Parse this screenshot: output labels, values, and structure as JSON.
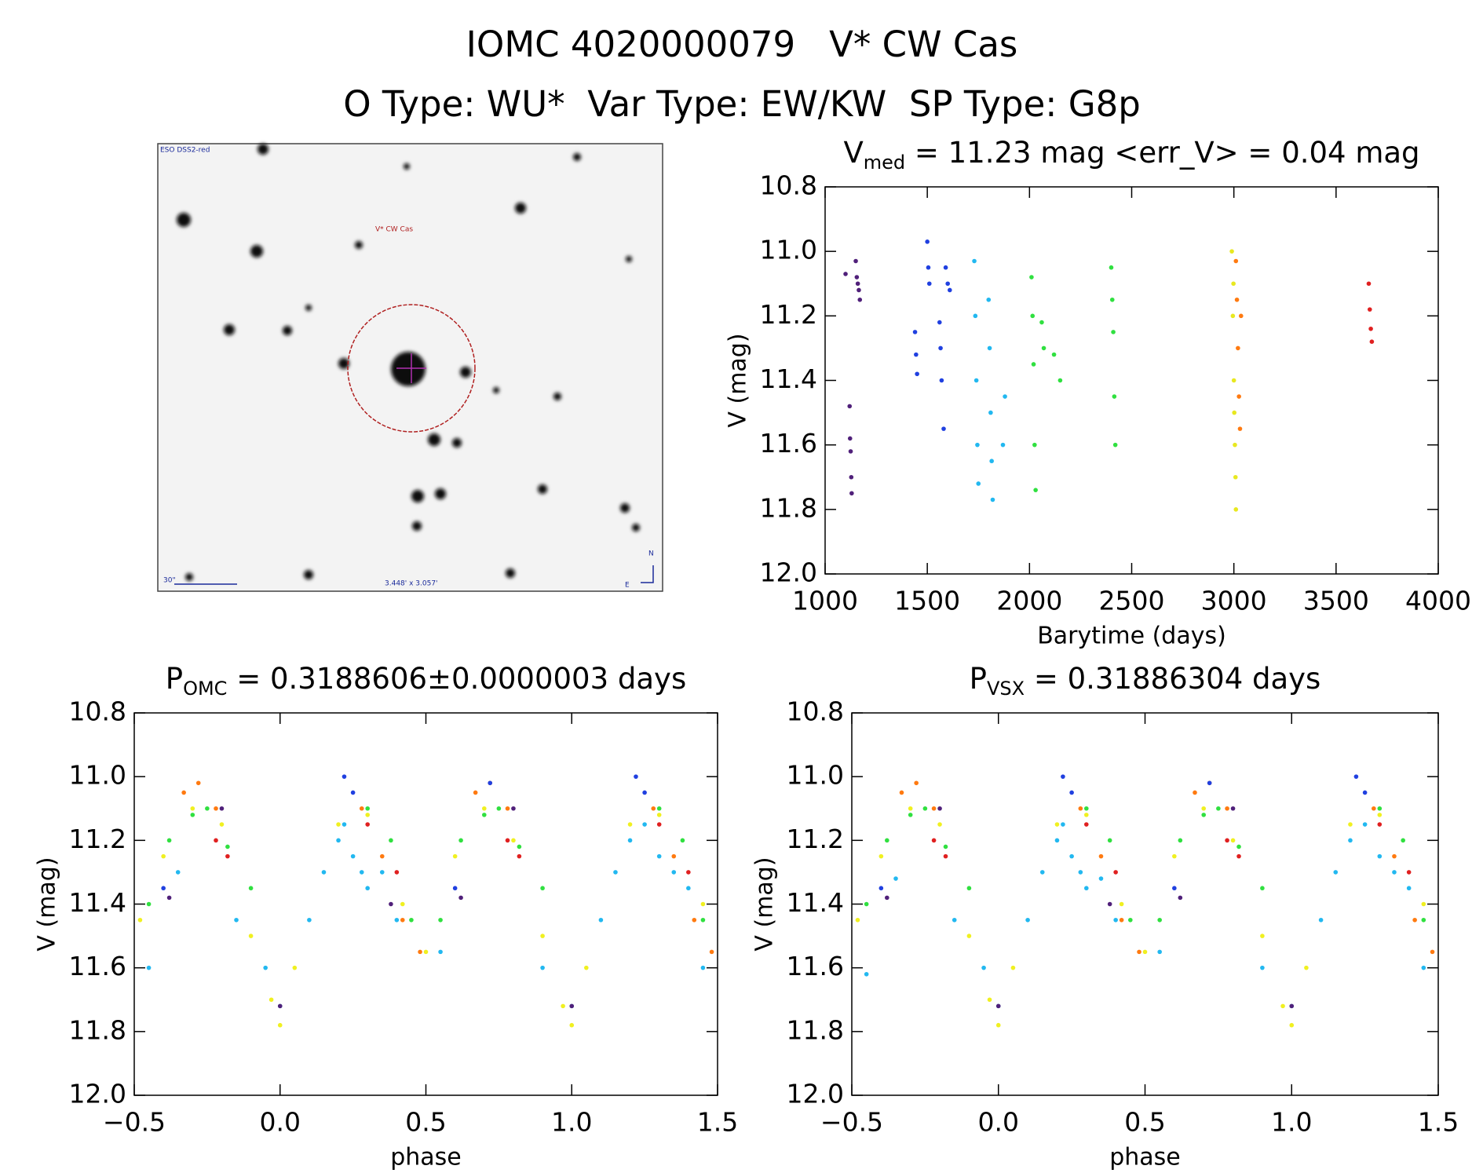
{
  "header": {
    "title": "IOMC 4020000079   V* CW Cas",
    "subtitle": "O Type: WU*  Var Type: EW/KW  SP Type: G8p"
  },
  "finder_image": {
    "survey": "ESO DSS2-red",
    "target": "V* CW Cas",
    "scale_bar": "30\"",
    "field": "3.448' x 3.057'",
    "north": "N",
    "east": "E"
  },
  "chart_data": [
    {
      "type": "scatter",
      "title": [
        "V",
        "med",
        " = 11.23 mag <err_V> = 0.04 mag"
      ],
      "xlabel": "Barytime (days)",
      "ylabel": "V (mag)",
      "xlim": [
        1000,
        4000
      ],
      "xticks": [
        1000,
        1500,
        2000,
        2500,
        3000,
        3500,
        4000
      ],
      "ylim": [
        {
          "value": 12.0,
          "label": "12.0"
        },
        10.8
      ],
      "yticks": [
        {
          "value": 12.0,
          "label": "12.0"
        },
        11.8,
        11.6,
        11.4,
        11.2,
        {
          "value": 11.0,
          "label": "11.0"
        },
        10.8
      ],
      "series": [
        {
          "color": "#50207a",
          "x": [
            1100,
            1150,
            1155,
            1160,
            1165,
            1170,
            1120,
            1122,
            1125,
            1128,
            1130
          ],
          "values": [
            11.07,
            11.03,
            11.08,
            11.1,
            11.12,
            11.15,
            11.48,
            11.58,
            11.62,
            11.7,
            11.75
          ]
        },
        {
          "color": "#2040e0",
          "x": [
            1440,
            1445,
            1450,
            1500,
            1505,
            1510,
            1560,
            1565,
            1570,
            1580,
            1590,
            1600,
            1610
          ],
          "values": [
            11.25,
            11.32,
            11.38,
            10.97,
            11.05,
            11.1,
            11.22,
            11.3,
            11.4,
            11.55,
            11.05,
            11.1,
            11.12
          ]
        },
        {
          "color": "#22b8f0",
          "x": [
            1730,
            1735,
            1740,
            1745,
            1750,
            1800,
            1805,
            1810,
            1815,
            1820,
            1880,
            1870
          ],
          "values": [
            11.03,
            11.2,
            11.4,
            11.6,
            11.72,
            11.15,
            11.3,
            11.5,
            11.65,
            11.77,
            11.45,
            11.6
          ]
        },
        {
          "color": "#30e040",
          "x": [
            2010,
            2015,
            2020,
            2025,
            2030,
            2060,
            2070,
            2120,
            2150,
            2400,
            2405,
            2410,
            2415,
            2420
          ],
          "values": [
            11.08,
            11.2,
            11.35,
            11.6,
            11.74,
            11.22,
            11.3,
            11.32,
            11.4,
            11.05,
            11.15,
            11.25,
            11.45,
            11.6
          ]
        },
        {
          "color": "#e8e820",
          "x": [
            2990,
            2995,
            3000,
            3005,
            3010,
            2998,
            3002,
            3008
          ],
          "values": [
            11.0,
            11.2,
            11.4,
            11.6,
            11.8,
            11.1,
            11.5,
            11.7
          ]
        },
        {
          "color": "#ff7a10",
          "x": [
            3010,
            3015,
            3020,
            3025,
            3030,
            3035
          ],
          "values": [
            11.03,
            11.15,
            11.3,
            11.45,
            11.55,
            11.2
          ]
        },
        {
          "color": "#e02020",
          "x": [
            3660,
            3665,
            3670,
            3675
          ],
          "values": [
            11.1,
            11.18,
            11.24,
            11.28
          ]
        }
      ]
    },
    {
      "type": "scatter",
      "title": [
        "P",
        "OMC",
        " = 0.3188606±0.0000003 days"
      ],
      "xlabel": "phase",
      "ylabel": "V (mag)",
      "xlim": [
        {
          "value": -0.5,
          "label": "−0.5"
        },
        1.5
      ],
      "xticks": [
        {
          "value": -0.5,
          "label": "−0.5"
        },
        {
          "value": 0.0,
          "label": "0.0"
        },
        0.5,
        {
          "value": 1.0,
          "label": "1.0"
        },
        1.5
      ],
      "ylim": [
        {
          "value": 12.0,
          "label": "12.0"
        },
        10.8
      ],
      "yticks": [
        {
          "value": 12.0,
          "label": "12.0"
        },
        11.8,
        11.6,
        11.4,
        11.2,
        {
          "value": 11.0,
          "label": "11.0"
        },
        10.8
      ],
      "series": [
        {
          "color": "#22b8f0",
          "x": [
            -0.45,
            -0.35,
            -0.15,
            -0.05,
            0.0,
            0.1,
            0.15,
            0.2,
            0.22,
            0.25,
            0.28,
            0.3,
            0.35,
            0.4,
            0.55,
            0.9,
            1.0,
            1.1,
            1.15,
            1.2,
            1.25,
            1.3,
            1.35,
            1.4,
            1.45
          ],
          "values": [
            11.6,
            11.3,
            11.45,
            11.6,
            11.72,
            11.45,
            11.3,
            11.2,
            11.15,
            11.25,
            11.3,
            11.35,
            11.3,
            11.45,
            11.55,
            11.6,
            11.72,
            11.45,
            11.3,
            11.2,
            11.15,
            11.25,
            11.3,
            11.35,
            11.6
          ]
        },
        {
          "color": "#f0f020",
          "x": [
            -0.48,
            -0.4,
            -0.3,
            -0.2,
            -0.1,
            -0.03,
            0.0,
            0.05,
            0.2,
            0.3,
            0.42,
            0.5,
            0.6,
            0.7,
            0.8,
            0.9,
            0.97,
            1.0,
            1.05,
            1.2,
            1.3,
            1.45
          ],
          "values": [
            11.45,
            11.25,
            11.1,
            11.15,
            11.5,
            11.7,
            11.78,
            11.6,
            11.15,
            11.12,
            11.4,
            11.55,
            11.25,
            11.1,
            11.2,
            11.5,
            11.72,
            11.78,
            11.6,
            11.15,
            11.12,
            11.4
          ]
        },
        {
          "color": "#30e040",
          "x": [
            -0.45,
            -0.38,
            -0.3,
            -0.25,
            -0.18,
            -0.1,
            0.3,
            0.38,
            0.45,
            0.55,
            0.62,
            0.7,
            0.75,
            0.82,
            0.9,
            1.3,
            1.38,
            1.45
          ],
          "values": [
            11.4,
            11.2,
            11.12,
            11.1,
            11.22,
            11.35,
            11.1,
            11.2,
            11.45,
            11.45,
            11.2,
            11.12,
            11.1,
            11.22,
            11.35,
            11.1,
            11.2,
            11.45
          ]
        },
        {
          "color": "#ff7a10",
          "x": [
            -0.33,
            -0.28,
            -0.22,
            0.28,
            0.35,
            0.42,
            0.48,
            0.67,
            0.72,
            0.78,
            1.28,
            1.35,
            1.42,
            1.48
          ],
          "values": [
            11.05,
            11.02,
            11.1,
            11.1,
            11.25,
            11.45,
            11.55,
            11.05,
            11.02,
            11.1,
            11.1,
            11.25,
            11.45,
            11.55
          ]
        },
        {
          "color": "#e02020",
          "x": [
            -0.22,
            -0.18,
            0.3,
            0.4,
            0.78,
            0.82,
            1.3,
            1.4
          ],
          "values": [
            11.2,
            11.25,
            11.15,
            11.3,
            11.2,
            11.25,
            11.15,
            11.3
          ]
        },
        {
          "color": "#2040e0",
          "x": [
            -0.4,
            0.22,
            0.25,
            0.6,
            0.72,
            1.22,
            1.25
          ],
          "values": [
            11.35,
            11.0,
            11.05,
            11.35,
            11.02,
            11.0,
            11.05
          ]
        },
        {
          "color": "#50207a",
          "x": [
            -0.38,
            -0.2,
            0.0,
            0.38,
            0.62,
            0.8,
            1.0
          ],
          "values": [
            11.38,
            11.1,
            11.72,
            11.4,
            11.38,
            11.1,
            11.72
          ]
        }
      ]
    },
    {
      "type": "scatter",
      "title": [
        "P",
        "VSX",
        " = 0.31886304 days"
      ],
      "xlabel": "phase",
      "ylabel": "V (mag)",
      "xlim": [
        {
          "value": -0.5,
          "label": "−0.5"
        },
        1.5
      ],
      "xticks": [
        {
          "value": -0.5,
          "label": "−0.5"
        },
        {
          "value": 0.0,
          "label": "0.0"
        },
        0.5,
        {
          "value": 1.0,
          "label": "1.0"
        },
        1.5
      ],
      "ylim": [
        {
          "value": 12.0,
          "label": "12.0"
        },
        10.8
      ],
      "yticks": [
        {
          "value": 12.0,
          "label": "12.0"
        },
        11.8,
        11.6,
        11.4,
        11.2,
        {
          "value": 11.0,
          "label": "11.0"
        },
        10.8
      ],
      "series": [
        {
          "color": "#22b8f0",
          "x": [
            -0.45,
            -0.35,
            -0.15,
            -0.05,
            0.0,
            0.1,
            0.15,
            0.2,
            0.22,
            0.25,
            0.28,
            0.3,
            0.35,
            0.4,
            0.55,
            0.9,
            1.0,
            1.1,
            1.15,
            1.2,
            1.25,
            1.3,
            1.35,
            1.4,
            1.45
          ],
          "values": [
            11.62,
            11.32,
            11.45,
            11.6,
            11.72,
            11.45,
            11.3,
            11.2,
            11.15,
            11.25,
            11.3,
            11.35,
            11.32,
            11.45,
            11.55,
            11.6,
            11.72,
            11.45,
            11.3,
            11.2,
            11.15,
            11.25,
            11.3,
            11.35,
            11.6
          ]
        },
        {
          "color": "#f0f020",
          "x": [
            -0.48,
            -0.4,
            -0.3,
            -0.2,
            -0.1,
            -0.03,
            0.0,
            0.05,
            0.2,
            0.3,
            0.42,
            0.5,
            0.6,
            0.7,
            0.8,
            0.9,
            0.97,
            1.0,
            1.05,
            1.2,
            1.3,
            1.45
          ],
          "values": [
            11.45,
            11.25,
            11.1,
            11.15,
            11.5,
            11.7,
            11.78,
            11.6,
            11.15,
            11.12,
            11.4,
            11.55,
            11.25,
            11.1,
            11.2,
            11.5,
            11.72,
            11.78,
            11.6,
            11.15,
            11.12,
            11.4
          ]
        },
        {
          "color": "#30e040",
          "x": [
            -0.45,
            -0.38,
            -0.3,
            -0.25,
            -0.18,
            -0.1,
            0.3,
            0.38,
            0.45,
            0.55,
            0.62,
            0.7,
            0.75,
            0.82,
            0.9,
            1.3,
            1.38,
            1.45
          ],
          "values": [
            11.4,
            11.2,
            11.12,
            11.1,
            11.22,
            11.35,
            11.1,
            11.2,
            11.45,
            11.45,
            11.2,
            11.12,
            11.1,
            11.22,
            11.35,
            11.1,
            11.2,
            11.45
          ]
        },
        {
          "color": "#ff7a10",
          "x": [
            -0.33,
            -0.28,
            -0.22,
            0.28,
            0.35,
            0.42,
            0.48,
            0.67,
            0.72,
            0.78,
            1.28,
            1.35,
            1.42,
            1.48
          ],
          "values": [
            11.05,
            11.02,
            11.1,
            11.1,
            11.25,
            11.45,
            11.55,
            11.05,
            11.02,
            11.1,
            11.1,
            11.25,
            11.45,
            11.55
          ]
        },
        {
          "color": "#e02020",
          "x": [
            -0.22,
            -0.18,
            0.3,
            0.4,
            0.78,
            0.82,
            1.3,
            1.4
          ],
          "values": [
            11.2,
            11.25,
            11.15,
            11.3,
            11.2,
            11.25,
            11.15,
            11.3
          ]
        },
        {
          "color": "#2040e0",
          "x": [
            -0.4,
            0.22,
            0.25,
            0.6,
            0.72,
            1.22,
            1.25
          ],
          "values": [
            11.35,
            11.0,
            11.05,
            11.35,
            11.02,
            11.0,
            11.05
          ]
        },
        {
          "color": "#50207a",
          "x": [
            -0.38,
            -0.2,
            0.0,
            0.38,
            0.62,
            0.8,
            1.0
          ],
          "values": [
            11.38,
            11.1,
            11.72,
            11.4,
            11.38,
            11.1,
            11.72
          ]
        }
      ]
    }
  ]
}
